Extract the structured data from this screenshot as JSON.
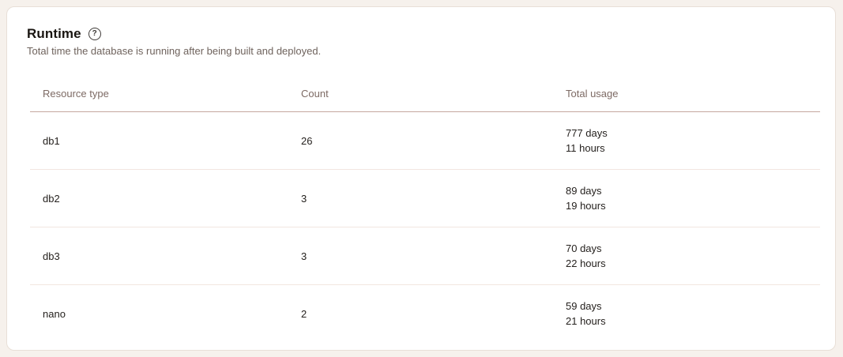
{
  "card": {
    "title": "Runtime",
    "subtitle": "Total time the database is running after being built and deployed."
  },
  "icons": {
    "help_glyph": "?"
  },
  "table": {
    "columns": [
      "Resource type",
      "Count",
      "Total usage"
    ],
    "rows": [
      {
        "resource_type": "db1",
        "count": "26",
        "total_usage": [
          "777 days",
          "11 hours"
        ]
      },
      {
        "resource_type": "db2",
        "count": "3",
        "total_usage": [
          "89 days",
          "19 hours"
        ]
      },
      {
        "resource_type": "db3",
        "count": "3",
        "total_usage": [
          "70 days",
          "22 hours"
        ]
      },
      {
        "resource_type": "nano",
        "count": "2",
        "total_usage": [
          "59 days",
          "21 hours"
        ]
      }
    ]
  },
  "colors": {
    "page_bg": "#f6f1ec",
    "card_bg": "#ffffff",
    "card_border": "#e8dfd7",
    "title_text": "#191511",
    "subtitle_text": "#6f635d",
    "header_text": "#7d6a64",
    "header_divider": "#c5a89e",
    "row_divider": "#f2e6e0",
    "cell_text": "#26221f"
  }
}
